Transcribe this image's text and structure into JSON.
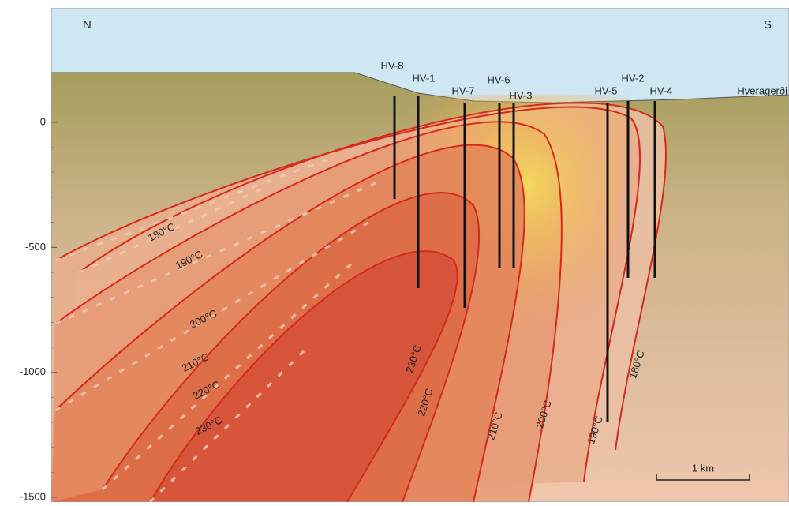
{
  "compass": {
    "north": "N",
    "south": "S"
  },
  "town": "Hveragerði",
  "wells": [
    "HV-8",
    "HV-1",
    "HV-7",
    "HV-6",
    "HV-3",
    "HV-5",
    "HV-2",
    "HV-4"
  ],
  "isotherms": [
    "180°C",
    "190°C",
    "200°C",
    "210°C",
    "220°C",
    "230°C"
  ],
  "depth_axis": {
    "ticks": [
      0,
      -500,
      -1000,
      -1500
    ]
  },
  "scale_bar": "1 km"
}
